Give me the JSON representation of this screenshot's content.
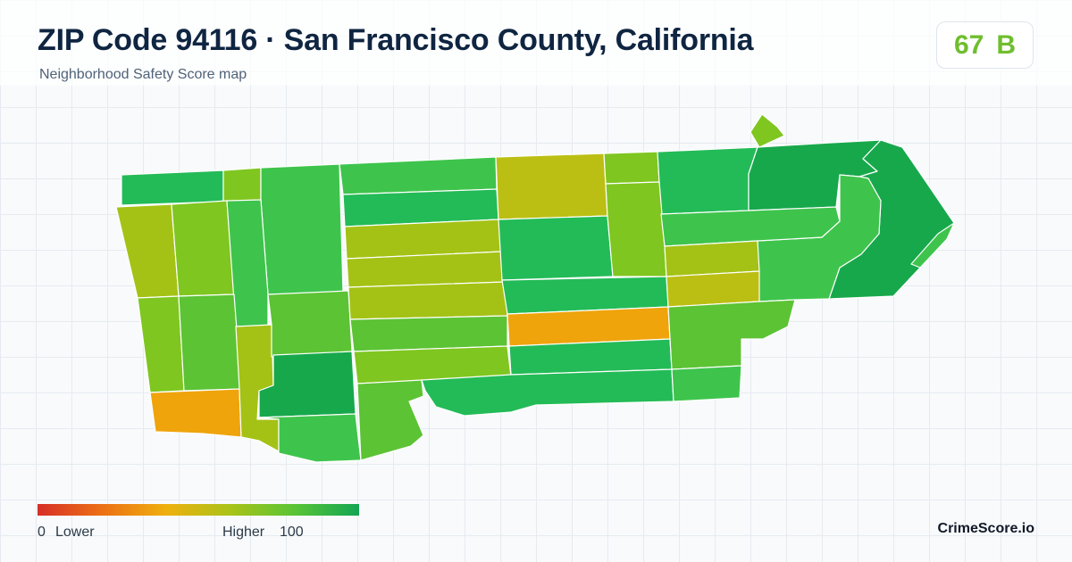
{
  "header": {
    "title": "ZIP Code 94116 · San Francisco County, California",
    "subtitle": "Neighborhood Safety Score map"
  },
  "score": {
    "value": "67",
    "grade": "B",
    "color": "#6fbe2e"
  },
  "legend": {
    "min": "0",
    "min_label": "Lower",
    "max_label": "Higher",
    "max": "100",
    "gradient_colors": [
      "#d62f26",
      "#ec7014",
      "#efb00e",
      "#a9c318",
      "#59c436",
      "#12a553"
    ]
  },
  "brand": "CrimeScore.io",
  "map": {
    "boundary_color": "#ffffff",
    "region_colors": {
      "dark-green": "#17a84c",
      "green": "#23bb57",
      "med-green": "#3ec44c",
      "lime-green": "#5cc334",
      "lime": "#7fc620",
      "yellow-green": "#a4c215",
      "olive": "#bcbf13",
      "orange": "#efa40c"
    }
  }
}
